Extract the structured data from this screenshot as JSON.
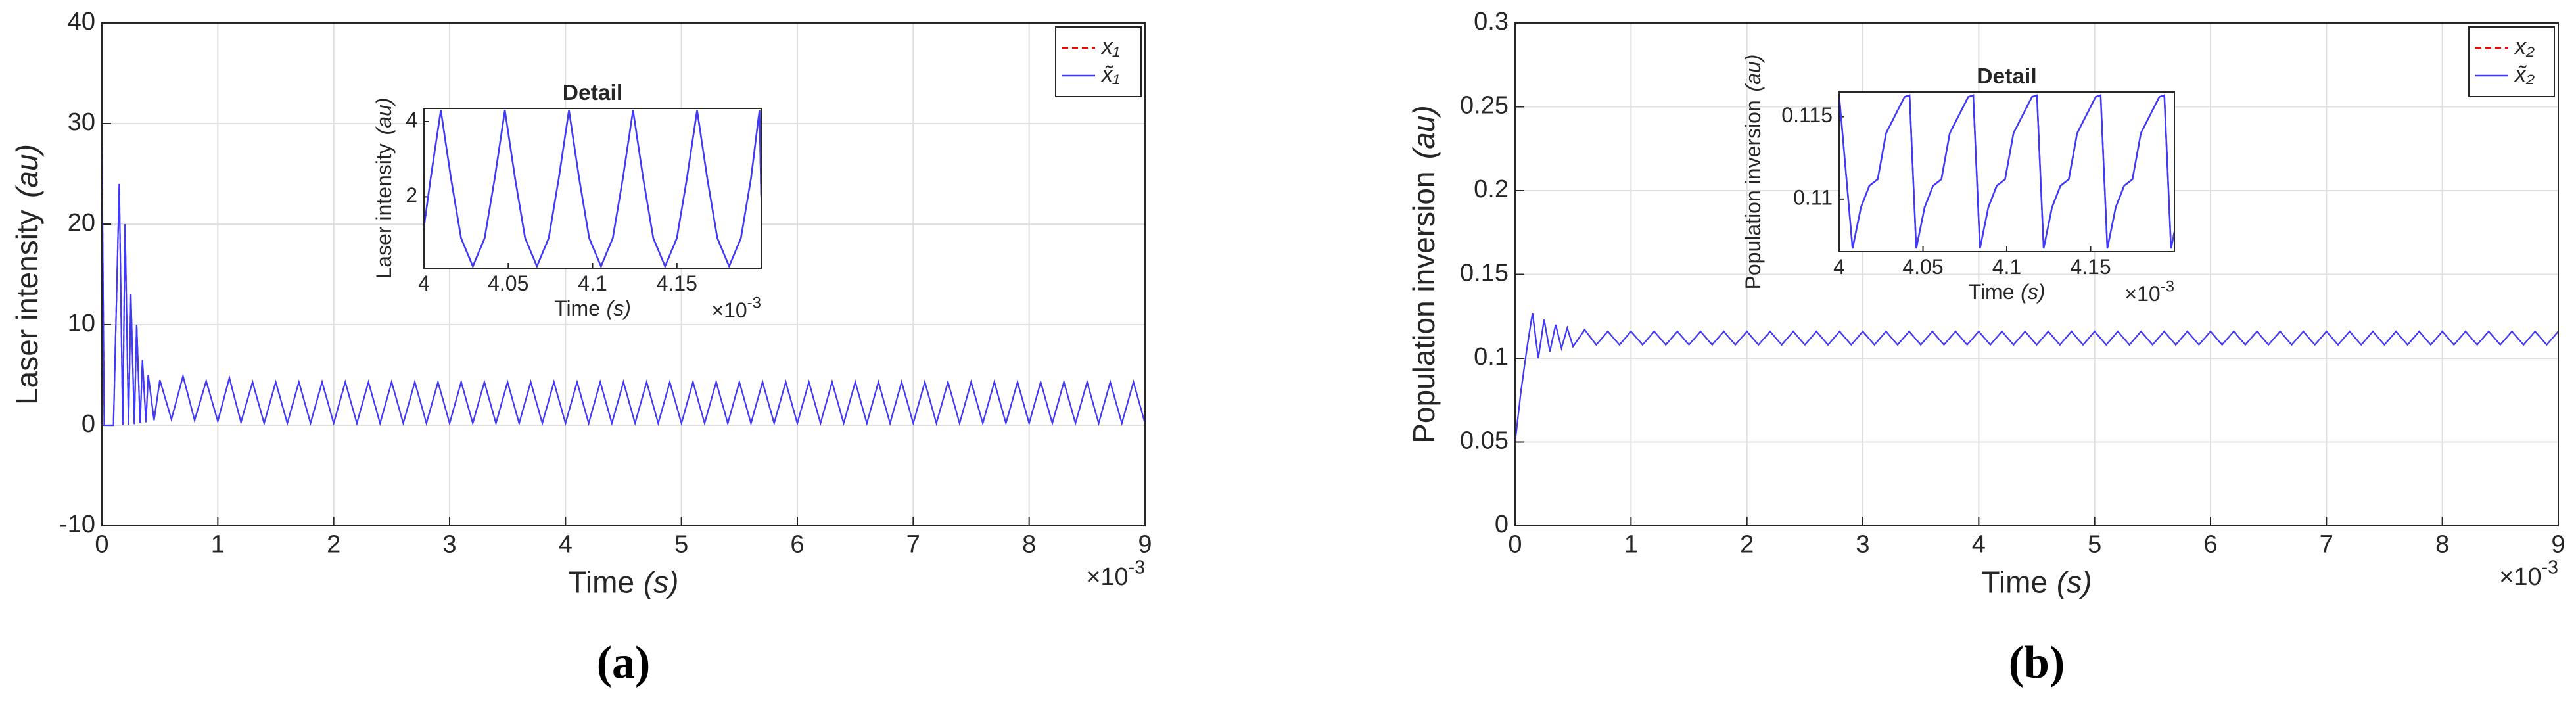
{
  "chart_data": [
    {
      "type": "line",
      "caption": "(a)",
      "xlabel": "Time",
      "xlabel_unit": "(s)",
      "ylabel": "Laser intensity",
      "ylabel_unit": "(au)",
      "x_multiplier": "×10",
      "x_exponent": "-3",
      "xlim": [
        0,
        9
      ],
      "xticks": [
        0,
        1,
        2,
        3,
        4,
        5,
        6,
        7,
        8,
        9
      ],
      "ylim": [
        -10,
        40
      ],
      "yticks": [
        -10,
        0,
        10,
        20,
        30,
        40
      ],
      "grid": true,
      "legend": "northeast",
      "x": [
        0,
        0.02,
        0.1,
        0.15,
        0.18,
        0.2,
        0.23,
        0.25,
        0.28,
        0.3,
        0.33,
        0.35,
        0.38,
        0.4,
        0.45,
        0.5,
        0.6,
        0.7,
        0.8,
        0.9,
        1.0,
        1.1,
        1.2,
        1.3,
        1.4,
        1.5,
        1.6,
        1.7,
        1.8,
        1.9,
        2.0,
        2.1,
        2.2,
        2.3,
        2.4,
        2.5,
        2.6,
        2.7,
        2.8,
        2.9,
        3.0,
        3.1,
        3.2,
        3.3,
        3.4,
        3.5,
        3.6,
        3.7,
        3.8,
        3.9,
        4.0,
        4.1,
        4.2,
        4.3,
        4.4,
        4.5,
        4.6,
        4.7,
        4.8,
        4.9,
        5.0,
        5.1,
        5.2,
        5.3,
        5.4,
        5.5,
        5.6,
        5.7,
        5.8,
        5.9,
        6.0,
        6.1,
        6.2,
        6.3,
        6.4,
        6.5,
        6.6,
        6.7,
        6.8,
        6.9,
        7.0,
        7.1,
        7.2,
        7.3,
        7.4,
        7.5,
        7.6,
        7.7,
        7.8,
        7.9,
        8.0,
        8.1,
        8.2,
        8.3,
        8.4,
        8.5,
        8.6,
        8.7,
        8.8,
        8.9,
        9.0
      ],
      "series": [
        {
          "name": "x₁",
          "color": "#ff0000",
          "linestyle": "--",
          "values": [
            28,
            0,
            0,
            24,
            0,
            20,
            0,
            13,
            0.1,
            10,
            0.2,
            6.5,
            0.3,
            5,
            0.5,
            4.5,
            0.6,
            4.9,
            0.5,
            4.4,
            0.4,
            4.7,
            0.3,
            4.3,
            0.2,
            4.3,
            0.2,
            4.3,
            0.2,
            4.3,
            0.2,
            4.3,
            0.2,
            4.3,
            0.2,
            4.3,
            0.2,
            4.3,
            0.2,
            4.3,
            0.2,
            4.3,
            0.2,
            4.3,
            0.2,
            4.3,
            0.2,
            4.3,
            0.2,
            4.3,
            0.2,
            4.3,
            0.2,
            4.3,
            0.2,
            4.3,
            0.2,
            4.3,
            0.2,
            4.3,
            0.2,
            4.3,
            0.2,
            4.3,
            0.2,
            4.3,
            0.2,
            4.3,
            0.2,
            4.3,
            0.2,
            4.3,
            0.2,
            4.3,
            0.2,
            4.3,
            0.2,
            4.3,
            0.2,
            4.3,
            0.2,
            4.3,
            0.2,
            4.3,
            0.2,
            4.3,
            0.2,
            4.3,
            0.2,
            4.3,
            0.2,
            4.3,
            0.2,
            4.3,
            0.2,
            4.3,
            0.2,
            4.3,
            0.2,
            4.3,
            0.2
          ]
        },
        {
          "name": "x̃₁",
          "color": "#3b3bff",
          "linestyle": "-",
          "values": [
            28,
            0,
            0,
            24,
            0,
            20,
            0,
            13,
            0.1,
            10,
            0.2,
            6.5,
            0.3,
            5,
            0.5,
            4.5,
            0.6,
            4.9,
            0.5,
            4.4,
            0.4,
            4.7,
            0.3,
            4.3,
            0.2,
            4.3,
            0.2,
            4.3,
            0.2,
            4.3,
            0.2,
            4.3,
            0.2,
            4.3,
            0.2,
            4.3,
            0.2,
            4.3,
            0.2,
            4.3,
            0.2,
            4.3,
            0.2,
            4.3,
            0.2,
            4.3,
            0.2,
            4.3,
            0.2,
            4.3,
            0.2,
            4.3,
            0.2,
            4.3,
            0.2,
            4.3,
            0.2,
            4.3,
            0.2,
            4.3,
            0.2,
            4.3,
            0.2,
            4.3,
            0.2,
            4.3,
            0.2,
            4.3,
            0.2,
            4.3,
            0.2,
            4.3,
            0.2,
            4.3,
            0.2,
            4.3,
            0.2,
            4.3,
            0.2,
            4.3,
            0.2,
            4.3,
            0.2,
            4.3,
            0.2,
            4.3,
            0.2,
            4.3,
            0.2,
            4.3,
            0.2,
            4.3,
            0.2,
            4.3,
            0.2,
            4.3,
            0.2,
            4.3,
            0.2,
            4.3,
            0.2
          ]
        }
      ]
    },
    {
      "type": "line",
      "title": "Detail",
      "xlabel": "Time",
      "xlabel_unit": "(s)",
      "ylabel": "Laser intensity",
      "ylabel_unit": "(au)",
      "x_multiplier": "×10",
      "x_exponent": "-3",
      "xlim": [
        4,
        4.2
      ],
      "xticks": [
        4,
        4.05,
        4.1,
        4.15
      ],
      "ylim": [
        0.1,
        4.35
      ],
      "yticks": [
        2,
        4
      ],
      "grid": false,
      "x": [
        4,
        4.004,
        4.01,
        4.016,
        4.022,
        4.029,
        4.036,
        4.042,
        4.048,
        4.054,
        4.06,
        4.067,
        4.074,
        4.08,
        4.086,
        4.092,
        4.098,
        4.105,
        4.112,
        4.118,
        4.124,
        4.13,
        4.136,
        4.143,
        4.15,
        4.156,
        4.162,
        4.168,
        4.174,
        4.181,
        4.188,
        4.194,
        4.199,
        4.2
      ],
      "series": [
        {
          "color": "#ff0000",
          "linestyle": "--",
          "values": [
            1.2,
            2.5,
            4.3,
            2.5,
            0.9,
            0.15,
            0.9,
            2.5,
            4.3,
            2.5,
            0.9,
            0.15,
            0.9,
            2.5,
            4.3,
            2.5,
            0.9,
            0.15,
            0.9,
            2.5,
            4.3,
            2.5,
            0.9,
            0.15,
            0.9,
            2.5,
            4.3,
            2.5,
            0.9,
            0.15,
            0.9,
            2.5,
            4.3,
            2.0
          ]
        },
        {
          "color": "#3b3bff",
          "linestyle": "-",
          "values": [
            1.2,
            2.5,
            4.3,
            2.5,
            0.9,
            0.15,
            0.9,
            2.5,
            4.3,
            2.5,
            0.9,
            0.15,
            0.9,
            2.5,
            4.3,
            2.5,
            0.9,
            0.15,
            0.9,
            2.5,
            4.3,
            2.5,
            0.9,
            0.15,
            0.9,
            2.5,
            4.3,
            2.5,
            0.9,
            0.15,
            0.9,
            2.5,
            4.3,
            2.0
          ]
        }
      ]
    },
    {
      "type": "line",
      "caption": "(b)",
      "xlabel": "Time",
      "xlabel_unit": "(s)",
      "ylabel": "Population inversion",
      "ylabel_unit": "(au)",
      "x_multiplier": "×10",
      "x_exponent": "-3",
      "xlim": [
        0,
        9
      ],
      "xticks": [
        0,
        1,
        2,
        3,
        4,
        5,
        6,
        7,
        8,
        9
      ],
      "ylim": [
        0,
        0.3
      ],
      "yticks": [
        0,
        0.05,
        0.1,
        0.15,
        0.2,
        0.25,
        0.3
      ],
      "grid": true,
      "legend": "northeast",
      "x": [
        0,
        0.05,
        0.1,
        0.15,
        0.2,
        0.25,
        0.3,
        0.35,
        0.4,
        0.45,
        0.5,
        0.6,
        0.7,
        0.8,
        0.9,
        1.0,
        1.1,
        1.2,
        1.3,
        1.4,
        1.5,
        1.6,
        1.7,
        1.8,
        1.9,
        2.0,
        2.1,
        2.2,
        2.3,
        2.4,
        2.5,
        2.6,
        2.7,
        2.8,
        2.9,
        3.0,
        3.1,
        3.2,
        3.3,
        3.4,
        3.5,
        3.6,
        3.7,
        3.8,
        3.9,
        4.0,
        4.1,
        4.2,
        4.3,
        4.4,
        4.5,
        4.6,
        4.7,
        4.8,
        4.9,
        5.0,
        5.1,
        5.2,
        5.3,
        5.4,
        5.5,
        5.6,
        5.7,
        5.8,
        5.9,
        6.0,
        6.1,
        6.2,
        6.3,
        6.4,
        6.5,
        6.6,
        6.7,
        6.8,
        6.9,
        7.0,
        7.1,
        7.2,
        7.3,
        7.4,
        7.5,
        7.6,
        7.7,
        7.8,
        7.9,
        8.0,
        8.1,
        8.2,
        8.3,
        8.4,
        8.5,
        8.6,
        8.7,
        8.8,
        8.9,
        9.0
      ],
      "series": [
        {
          "name": "x₂",
          "color": "#ff0000",
          "linestyle": "--",
          "values": [
            0.05,
            0.08,
            0.105,
            0.127,
            0.1,
            0.123,
            0.104,
            0.12,
            0.106,
            0.118,
            0.107,
            0.117,
            0.108,
            0.116,
            0.108,
            0.116,
            0.108,
            0.116,
            0.108,
            0.116,
            0.108,
            0.116,
            0.108,
            0.116,
            0.108,
            0.116,
            0.108,
            0.116,
            0.108,
            0.116,
            0.108,
            0.116,
            0.108,
            0.116,
            0.108,
            0.116,
            0.108,
            0.116,
            0.108,
            0.116,
            0.108,
            0.116,
            0.108,
            0.116,
            0.108,
            0.116,
            0.108,
            0.116,
            0.108,
            0.116,
            0.108,
            0.116,
            0.108,
            0.116,
            0.108,
            0.116,
            0.108,
            0.116,
            0.108,
            0.116,
            0.108,
            0.116,
            0.108,
            0.116,
            0.108,
            0.116,
            0.108,
            0.116,
            0.108,
            0.116,
            0.108,
            0.116,
            0.108,
            0.116,
            0.108,
            0.116,
            0.108,
            0.116,
            0.108,
            0.116,
            0.108,
            0.116,
            0.108,
            0.116,
            0.108,
            0.116,
            0.108,
            0.116,
            0.108,
            0.116,
            0.108,
            0.116,
            0.108,
            0.116,
            0.108,
            0.116
          ]
        },
        {
          "name": "x̃₂",
          "color": "#3b3bff",
          "linestyle": "-",
          "values": [
            0.05,
            0.08,
            0.105,
            0.127,
            0.1,
            0.123,
            0.104,
            0.12,
            0.106,
            0.118,
            0.107,
            0.117,
            0.108,
            0.116,
            0.108,
            0.116,
            0.108,
            0.116,
            0.108,
            0.116,
            0.108,
            0.116,
            0.108,
            0.116,
            0.108,
            0.116,
            0.108,
            0.116,
            0.108,
            0.116,
            0.108,
            0.116,
            0.108,
            0.116,
            0.108,
            0.116,
            0.108,
            0.116,
            0.108,
            0.116,
            0.108,
            0.116,
            0.108,
            0.116,
            0.108,
            0.116,
            0.108,
            0.116,
            0.108,
            0.116,
            0.108,
            0.116,
            0.108,
            0.116,
            0.108,
            0.116,
            0.108,
            0.116,
            0.108,
            0.116,
            0.108,
            0.116,
            0.108,
            0.116,
            0.108,
            0.116,
            0.108,
            0.116,
            0.108,
            0.116,
            0.108,
            0.116,
            0.108,
            0.116,
            0.108,
            0.116,
            0.108,
            0.116,
            0.108,
            0.116,
            0.108,
            0.116,
            0.108,
            0.116,
            0.108,
            0.116,
            0.108,
            0.116,
            0.108,
            0.116,
            0.108,
            0.116,
            0.108,
            0.116,
            0.108,
            0.116
          ]
        }
      ]
    },
    {
      "type": "line",
      "title": "Detail",
      "xlabel": "Time",
      "xlabel_unit": "(s)",
      "ylabel": "Population inversion",
      "ylabel_unit": "(au)",
      "x_multiplier": "×10",
      "x_exponent": "-3",
      "xlim": [
        4,
        4.2
      ],
      "xticks": [
        4,
        4.05,
        4.1,
        4.15
      ],
      "ylim": [
        0.1068,
        0.1165
      ],
      "yticks": [
        0.11,
        0.115
      ],
      "grid": false,
      "x": [
        4,
        4.008,
        4.013,
        4.018,
        4.023,
        4.028,
        4.033,
        4.039,
        4.042,
        4.046,
        4.051,
        4.056,
        4.061,
        4.066,
        4.071,
        4.077,
        4.08,
        4.084,
        4.089,
        4.094,
        4.099,
        4.104,
        4.109,
        4.115,
        4.118,
        4.122,
        4.127,
        4.132,
        4.137,
        4.142,
        4.147,
        4.153,
        4.156,
        4.16,
        4.165,
        4.17,
        4.175,
        4.18,
        4.185,
        4.191,
        4.194,
        4.198,
        4.2
      ],
      "series": [
        {
          "color": "#ff0000",
          "linestyle": "--",
          "values": [
            0.1163,
            0.107,
            0.1095,
            0.1108,
            0.1112,
            0.114,
            0.115,
            0.1162,
            0.1163,
            0.107,
            0.1095,
            0.1108,
            0.1112,
            0.114,
            0.115,
            0.1162,
            0.1163,
            0.107,
            0.1095,
            0.1108,
            0.1112,
            0.114,
            0.115,
            0.1162,
            0.1163,
            0.107,
            0.1095,
            0.1108,
            0.1112,
            0.114,
            0.115,
            0.1162,
            0.1163,
            0.107,
            0.1095,
            0.1108,
            0.1112,
            0.114,
            0.115,
            0.1162,
            0.1163,
            0.107,
            0.108
          ]
        },
        {
          "color": "#3b3bff",
          "linestyle": "-",
          "values": [
            0.1163,
            0.107,
            0.1095,
            0.1108,
            0.1112,
            0.114,
            0.115,
            0.1162,
            0.1163,
            0.107,
            0.1095,
            0.1108,
            0.1112,
            0.114,
            0.115,
            0.1162,
            0.1163,
            0.107,
            0.1095,
            0.1108,
            0.1112,
            0.114,
            0.115,
            0.1162,
            0.1163,
            0.107,
            0.1095,
            0.1108,
            0.1112,
            0.114,
            0.115,
            0.1162,
            0.1163,
            0.107,
            0.1095,
            0.1108,
            0.1112,
            0.114,
            0.115,
            0.1162,
            0.1163,
            0.107,
            0.108
          ]
        }
      ]
    }
  ]
}
